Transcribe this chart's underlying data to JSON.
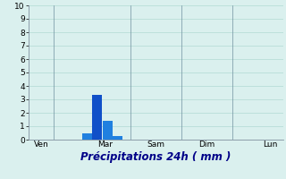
{
  "ylabel_values": [
    0,
    1,
    2,
    3,
    4,
    5,
    6,
    7,
    8,
    9,
    10
  ],
  "ylim": [
    0,
    10
  ],
  "background_color": "#daf0ee",
  "grid_color": "#b8ddd8",
  "bar_color_dark": "#1050c8",
  "bar_color_light": "#2080e0",
  "x_tick_labels": [
    "Ven",
    "Mar",
    "Sam",
    "Dim",
    "Lun"
  ],
  "x_tick_positions": [
    0.5,
    3.0,
    5.0,
    7.0,
    9.5
  ],
  "xlim": [
    0,
    10
  ],
  "bars": [
    {
      "x": 2.3,
      "height": 0.5,
      "color": "#2080e0"
    },
    {
      "x": 2.7,
      "height": 3.35,
      "color": "#1050c8"
    },
    {
      "x": 3.1,
      "height": 1.4,
      "color": "#2080e0"
    },
    {
      "x": 3.5,
      "height": 0.3,
      "color": "#2080e0"
    }
  ],
  "xlabel": "Précipitations 24h ( mm )",
  "bar_width": 0.38,
  "xlabel_fontsize": 8.5,
  "tick_fontsize": 6.5,
  "vline_color": "#7090a0",
  "vline_positions": [
    1.0,
    4.0,
    6.0,
    8.0
  ],
  "spine_color": "#8090a0"
}
